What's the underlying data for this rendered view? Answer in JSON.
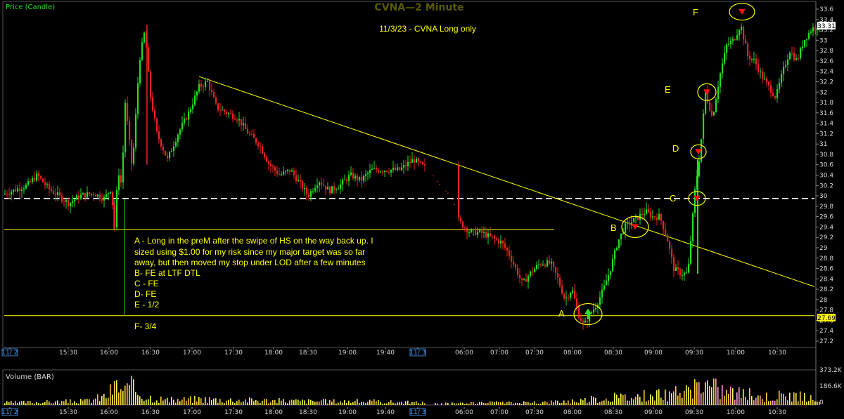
{
  "chart_data": {
    "type": "candlestick",
    "title": "CVNA—2 Minute",
    "subtitle": "11/3/23 - CVNA Long only",
    "panels": [
      {
        "name": "Price (Candle)",
        "scale": [
          27.1,
          33.7
        ]
      },
      {
        "name": "Volume (BAR)",
        "scale": [
          0,
          373200
        ]
      }
    ],
    "y_ticks": [
      "33.6",
      "33.4",
      "33.2",
      "33",
      "32.8",
      "32.6",
      "32.4",
      "32.2",
      "32",
      "31.8",
      "31.6",
      "31.4",
      "31.2",
      "31",
      "30.8",
      "30.6",
      "30.4",
      "30.2",
      "30",
      "29.8",
      "29.6",
      "29.4",
      "29.2",
      "29",
      "28.8",
      "28.6",
      "28.4",
      "28.2",
      "28",
      "27.8",
      "27.6",
      "27.4",
      "27.2"
    ],
    "volume_ticks": [
      "373.2K",
      "186.6K",
      "0"
    ],
    "x_ticks": [
      "11/ 2",
      "15:30",
      "16:00",
      "16:30",
      "17:00",
      "17:30",
      "18:00",
      "18:30",
      "19:00",
      "19:40",
      "11/ 3",
      "06:00",
      "07:00",
      "07:30",
      "08:00",
      "08:30",
      "09:00",
      "09:30",
      "10:00",
      "10:30"
    ],
    "date_ticks": [
      "11/ 2",
      "11/ 3"
    ],
    "last_price": "33.31",
    "level_badge": "27.69",
    "levels": [
      {
        "price": 29.95,
        "style": "dashed",
        "color": "#ffffff"
      },
      {
        "price": 29.35,
        "style": "solid",
        "color": "#ffff00"
      },
      {
        "price": 27.69,
        "style": "solid",
        "color": "#ffff00"
      }
    ],
    "trendline": {
      "from": {
        "time": "17:00",
        "price": 32.3
      },
      "to": {
        "time": "10:45",
        "price": 28.25
      },
      "color": "#ffff00"
    },
    "annotations": [
      {
        "label": "A",
        "price": 27.72,
        "marker": "up-arrow"
      },
      {
        "label": "B",
        "price": 29.4,
        "marker": "down-arrow"
      },
      {
        "label": "C",
        "price": 29.95,
        "marker": "down-arrow"
      },
      {
        "label": "D",
        "price": 30.85,
        "marker": "down-arrow"
      },
      {
        "label": "E",
        "price": 32.0,
        "marker": "down-arrow"
      },
      {
        "label": "F",
        "price": 33.55,
        "marker": "down-arrow"
      }
    ],
    "notes": [
      "A - Long in the preM after the swipe of HS on the way back up. I",
      "sized using $1.00 for my risk since my major target was so far",
      "away, but then moved my stop under LOD after a few minutes",
      "B- FE at LTF DTL",
      "C - FE",
      "D- FE",
      "E - 1/2",
      "F- 3/4"
    ],
    "series": [
      {
        "name": "Price (Candle)",
        "path_prices": [
          [
            0,
            30.0
          ],
          [
            20,
            30.1
          ],
          [
            40,
            30.2
          ],
          [
            55,
            30.4
          ],
          [
            70,
            30.15
          ],
          [
            85,
            30.0
          ],
          [
            100,
            29.85
          ],
          [
            115,
            30.0
          ],
          [
            135,
            30.05
          ],
          [
            150,
            29.95
          ],
          [
            160,
            30.15
          ],
          [
            165,
            29.4
          ],
          [
            170,
            30.5
          ],
          [
            175,
            30.2
          ],
          [
            180,
            31.8
          ],
          [
            190,
            30.5
          ],
          [
            200,
            32.6
          ],
          [
            208,
            33.2
          ],
          [
            215,
            32.0
          ],
          [
            225,
            31.2
          ],
          [
            240,
            30.7
          ],
          [
            255,
            31.2
          ],
          [
            270,
            31.6
          ],
          [
            285,
            32.1
          ],
          [
            297,
            32.2
          ],
          [
            310,
            31.7
          ],
          [
            325,
            31.6
          ],
          [
            340,
            31.5
          ],
          [
            355,
            31.2
          ],
          [
            370,
            31.0
          ],
          [
            385,
            30.6
          ],
          [
            400,
            30.4
          ],
          [
            415,
            30.5
          ],
          [
            430,
            30.2
          ],
          [
            440,
            30.0
          ],
          [
            455,
            30.3
          ],
          [
            470,
            30.1
          ],
          [
            485,
            30.2
          ],
          [
            500,
            30.4
          ],
          [
            515,
            30.3
          ],
          [
            530,
            30.5
          ],
          [
            550,
            30.5
          ],
          [
            570,
            30.5
          ],
          [
            590,
            30.7
          ],
          [
            610,
            30.5
          ],
          [
            625,
            30.2
          ],
          [
            640,
            30.0
          ],
          [
            655,
            29.5
          ],
          [
            670,
            29.3
          ],
          [
            685,
            29.3
          ],
          [
            700,
            29.2
          ],
          [
            715,
            29.1
          ],
          [
            725,
            28.9
          ],
          [
            735,
            28.6
          ],
          [
            745,
            28.3
          ],
          [
            755,
            28.5
          ],
          [
            770,
            28.7
          ],
          [
            785,
            28.7
          ],
          [
            795,
            28.4
          ],
          [
            805,
            28.0
          ],
          [
            815,
            28.2
          ],
          [
            825,
            27.7
          ],
          [
            832,
            27.5
          ],
          [
            840,
            27.7
          ],
          [
            850,
            27.9
          ],
          [
            860,
            28.2
          ],
          [
            870,
            28.6
          ],
          [
            880,
            29.1
          ],
          [
            890,
            29.4
          ],
          [
            900,
            29.5
          ],
          [
            910,
            29.6
          ],
          [
            920,
            29.7
          ],
          [
            930,
            29.6
          ],
          [
            940,
            29.6
          ],
          [
            950,
            29.2
          ],
          [
            960,
            28.6
          ],
          [
            970,
            28.5
          ],
          [
            980,
            28.5
          ],
          [
            990,
            30.1
          ],
          [
            997,
            30.8
          ],
          [
            1005,
            32.0
          ],
          [
            1015,
            31.5
          ],
          [
            1025,
            32.3
          ],
          [
            1035,
            32.9
          ],
          [
            1045,
            33.0
          ],
          [
            1055,
            33.3
          ],
          [
            1065,
            32.7
          ],
          [
            1075,
            32.6
          ],
          [
            1085,
            32.3
          ],
          [
            1095,
            32.1
          ],
          [
            1105,
            31.9
          ],
          [
            1115,
            32.4
          ],
          [
            1125,
            32.8
          ],
          [
            1135,
            32.6
          ],
          [
            1145,
            33.0
          ],
          [
            1155,
            33.2
          ],
          [
            1165,
            33.3
          ]
        ]
      },
      {
        "name": "Volume (BAR)",
        "path_values": [
          [
            0,
            30000
          ],
          [
            60,
            40000
          ],
          [
            120,
            50000
          ],
          [
            150,
            120000
          ],
          [
            158,
            200000
          ],
          [
            165,
            260000
          ],
          [
            175,
            180000
          ],
          [
            185,
            240000
          ],
          [
            205,
            120000
          ],
          [
            240,
            60000
          ],
          [
            280,
            80000
          ],
          [
            320,
            70000
          ],
          [
            380,
            60000
          ],
          [
            440,
            50000
          ],
          [
            500,
            50000
          ],
          [
            560,
            40000
          ],
          [
            600,
            30000
          ],
          [
            650,
            20000
          ],
          [
            700,
            30000
          ],
          [
            760,
            30000
          ],
          [
            820,
            60000
          ],
          [
            860,
            90000
          ],
          [
            900,
            110000
          ],
          [
            950,
            140000
          ],
          [
            985,
            190000
          ],
          [
            995,
            300000
          ],
          [
            1005,
            260000
          ],
          [
            1025,
            200000
          ],
          [
            1050,
            160000
          ],
          [
            1080,
            110000
          ],
          [
            1120,
            130000
          ],
          [
            1150,
            90000
          ],
          [
            1165,
            60000
          ]
        ]
      }
    ]
  }
}
